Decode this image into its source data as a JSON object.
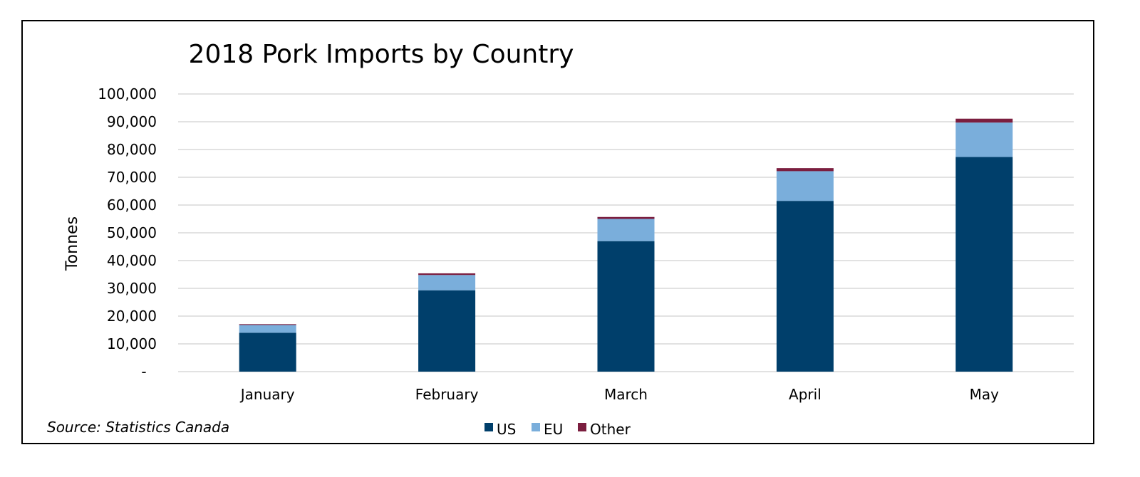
{
  "chart_data": {
    "type": "bar",
    "stacked": true,
    "title": "2018 Pork Imports by Country",
    "xlabel": "",
    "ylabel": "Tonnes",
    "ylim": [
      0,
      100000
    ],
    "yticks": [
      0,
      10000,
      20000,
      30000,
      40000,
      50000,
      60000,
      70000,
      80000,
      90000,
      100000
    ],
    "ytick_labels": [
      "-",
      "10,000",
      "20,000",
      "30,000",
      "40,000",
      "50,000",
      "60,000",
      "70,000",
      "80,000",
      "90,000",
      "100,000"
    ],
    "categories": [
      "January",
      "February",
      "March",
      "April",
      "May"
    ],
    "series": [
      {
        "name": "US",
        "color": "#003f6b",
        "values": [
          14000,
          29300,
          47000,
          61500,
          77300
        ]
      },
      {
        "name": "EU",
        "color": "#7aaedb",
        "values": [
          2800,
          5500,
          8000,
          10700,
          12400
        ]
      },
      {
        "name": "Other",
        "color": "#7b1e3f",
        "values": [
          300,
          600,
          700,
          1100,
          1400
        ]
      }
    ],
    "grid": true,
    "legend_position": "bottom"
  },
  "source": "Source: Statistics Canada"
}
